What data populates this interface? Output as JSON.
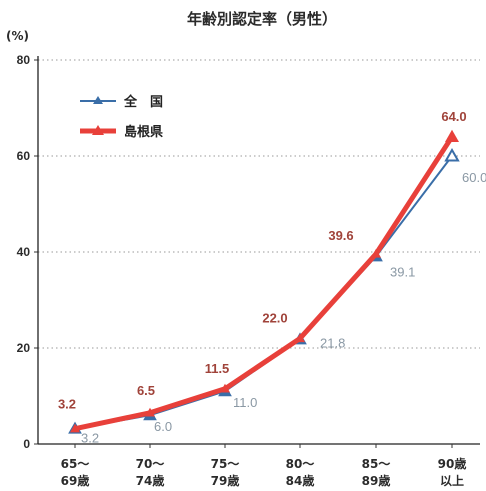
{
  "chart_data": {
    "type": "line",
    "title": "年齢別認定率（男性）",
    "unit_label": "(%)",
    "ylim": [
      0,
      80
    ],
    "yticks": [
      "0",
      "20",
      "40",
      "60",
      "80"
    ],
    "categories": [
      [
        "65～",
        "69歳"
      ],
      [
        "70～",
        "74歳"
      ],
      [
        "75～",
        "79歳"
      ],
      [
        "80～",
        "84歳"
      ],
      [
        "85～",
        "89歳"
      ],
      [
        "90歳",
        "以上"
      ]
    ],
    "grid": true,
    "legend_position": "top-left",
    "series": [
      {
        "name": "全　国",
        "values": [
          3.2,
          6.0,
          11.0,
          21.8,
          39.1,
          60.0
        ],
        "labels": [
          "3.2",
          "6.0",
          "11.0",
          "21.8",
          "39.1",
          "60.0"
        ],
        "color": "#3a6ea8",
        "marker": "triangle"
      },
      {
        "name": "島根県",
        "values": [
          3.2,
          6.5,
          11.5,
          22.0,
          39.6,
          64.0
        ],
        "labels": [
          "3.2",
          "6.5",
          "11.5",
          "22.0",
          "39.6",
          "64.0"
        ],
        "color": "#e8403a",
        "marker": "triangle"
      }
    ]
  }
}
